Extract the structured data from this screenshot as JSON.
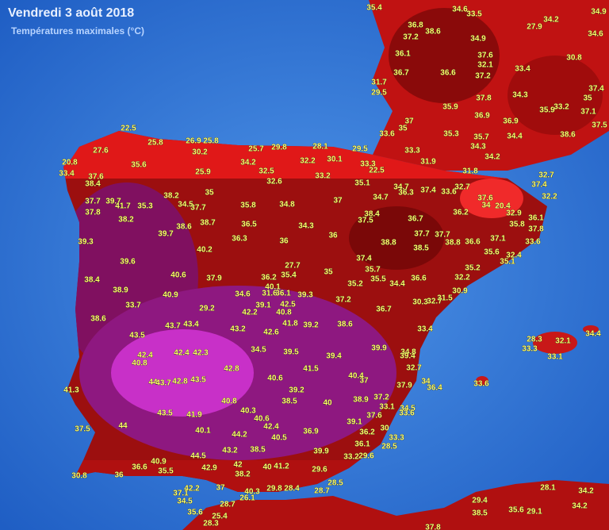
{
  "header": {
    "title": "Vendredi 3 août 2018",
    "subtitle": "Températures maximales (°C)"
  },
  "labels": [
    "35.4",
    "36.8",
    "38.6",
    "37.2",
    "34.6",
    "33.5",
    "34.9",
    "27.9",
    "34.2",
    "34.9",
    "34.6",
    "36.1",
    "37.6",
    "32.1",
    "30.8",
    "33.4",
    "36.7",
    "36.6",
    "37.2",
    "31.7",
    "29.5",
    "37.4",
    "34.3",
    "35",
    "37.8",
    "35.9",
    "36.9",
    "35.9",
    "33.2",
    "37.1",
    "37",
    "35",
    "36.9",
    "33.6",
    "35.3",
    "35.7",
    "34.4",
    "34.3",
    "38.6",
    "37.5",
    "33.3",
    "34.2",
    "31.9",
    "22.5",
    "27.6",
    "25.8",
    "26.9",
    "25.8",
    "30.2",
    "20.8",
    "33.4",
    "35.6",
    "34.2",
    "29.8",
    "25.7",
    "28.1",
    "32.2",
    "30.1",
    "29.5",
    "33.3",
    "22.5",
    "25.9",
    "32.5",
    "33.2",
    "32.6",
    "35.1",
    "31.8",
    "32.7",
    "37.4",
    "32.2",
    "37.6",
    "38.4",
    "38.2",
    "35",
    "37",
    "34.7",
    "36.3",
    "37.4",
    "33.6",
    "32.7",
    "37.6",
    "34",
    "20.4",
    "37.7",
    "39.7",
    "41.7",
    "35.3",
    "34.5",
    "37.7",
    "35.8",
    "34.8",
    "34.7",
    "37.8",
    "36.2",
    "32.9",
    "36.1",
    "38.2",
    "38.6",
    "38.7",
    "36.5",
    "34.3",
    "38.4",
    "37.5",
    "36.7",
    "37.8",
    "35.8",
    "39.7",
    "36",
    "36.3",
    "36",
    "37.7",
    "37.7",
    "38.8",
    "38.5",
    "38.8",
    "36.6",
    "37.1",
    "33.6",
    "39.3",
    "40.2",
    "35.6",
    "32.4",
    "37.4",
    "35.1",
    "39.6",
    "27.7",
    "35.7",
    "35",
    "35.2",
    "36.2",
    "35.4",
    "35.5",
    "34.4",
    "36.6",
    "32.2",
    "38.4",
    "40.6",
    "37.9",
    "35.2",
    "40.1",
    "38.9",
    "40.9",
    "34.6",
    "31.6",
    "36.1",
    "39.3",
    "30.9",
    "31.5",
    "37.2",
    "30.3",
    "32.7",
    "33.7",
    "29.2",
    "39.1",
    "42.5",
    "40.8",
    "42.2",
    "36.7",
    "38.6",
    "43.7",
    "43.4",
    "41.8",
    "39.2",
    "38.6",
    "33.4",
    "43.5",
    "43.2",
    "42.6",
    "34.4",
    "32.1",
    "28.3",
    "33.3",
    "33.1",
    "42.4",
    "42.4",
    "42.3",
    "34.5",
    "39.5",
    "39.9",
    "39.4",
    "34.8",
    "39.4",
    "40.8",
    "42.8",
    "41.5",
    "32.7",
    "40.6",
    "40.4",
    "37",
    "44",
    "43.7",
    "42.8",
    "43.5",
    "37.9",
    "34",
    "33.6",
    "36.4",
    "41.3",
    "39.2",
    "40.8",
    "38.5",
    "40",
    "38.9",
    "37.2",
    "33.1",
    "34.5",
    "43.5",
    "41.9",
    "40.3",
    "37.6",
    "33.6",
    "40.6",
    "39.1",
    "44",
    "42.4",
    "37.5",
    "40.1",
    "36.9",
    "36.2",
    "30",
    "44.2",
    "40.5",
    "33.3",
    "36.1",
    "28.5",
    "43.2",
    "38.5",
    "39.9",
    "44.5",
    "33.2",
    "29.6",
    "40.9",
    "36.6",
    "35.5",
    "42.9",
    "40",
    "41.2",
    "29.6",
    "30.8",
    "36",
    "42",
    "38.2",
    "28.5",
    "28.1",
    "34.2",
    "42.2",
    "37",
    "29.8",
    "28.4",
    "28.7",
    "37.1",
    "34.5",
    "40.3",
    "26.1",
    "29.4",
    "28.7",
    "35.6",
    "25.4",
    "35.6",
    "29.1",
    "34.2",
    "38.5",
    "28.3",
    "37.8"
  ]
}
